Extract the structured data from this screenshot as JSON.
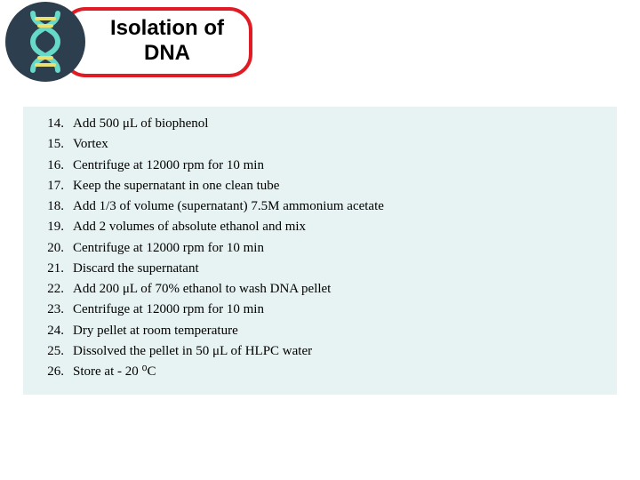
{
  "header": {
    "title": "Isolation of\nDNA",
    "title_fontsize": 24,
    "title_font": "Comic Sans MS",
    "title_border_color": "#e01b24",
    "title_border_width": 4,
    "icon_bg": "#2d3e4e",
    "dna_strand_color": "#66d9c8",
    "dna_rung_color": "#e8e070"
  },
  "protocol": {
    "panel_bg": "#e7f3f2",
    "text_color": "#000000",
    "fontsize": 15,
    "start_number": 14,
    "steps": [
      {
        "n": 14,
        "text": "Add 500 μL of biophenol"
      },
      {
        "n": 15,
        "text": "Vortex"
      },
      {
        "n": 16,
        "text": "Centrifuge at 12000 rpm for 10 min"
      },
      {
        "n": 17,
        "text": "Keep the supernatant in one clean tube"
      },
      {
        "n": 18,
        "text": "Add 1/3 of volume (supernatant) 7.5M ammonium acetate"
      },
      {
        "n": 19,
        "text": "Add 2 volumes of absolute ethanol and mix"
      },
      {
        "n": 20,
        "text": "Centrifuge at 12000 rpm for 10 min"
      },
      {
        "n": 21,
        "text": "Discard the supernatant"
      },
      {
        "n": 22,
        "text": "Add 200 μL of 70% ethanol to wash DNA pellet"
      },
      {
        "n": 23,
        "text": "Centrifuge at 12000 rpm for 10 min"
      },
      {
        "n": 24,
        "text": "Dry pellet at room temperature"
      },
      {
        "n": 25,
        "text": "Dissolved the pellet in 50 μL of HLPC  water"
      },
      {
        "n": 26,
        "text": "Store at  - 20 ⁰C"
      }
    ]
  }
}
